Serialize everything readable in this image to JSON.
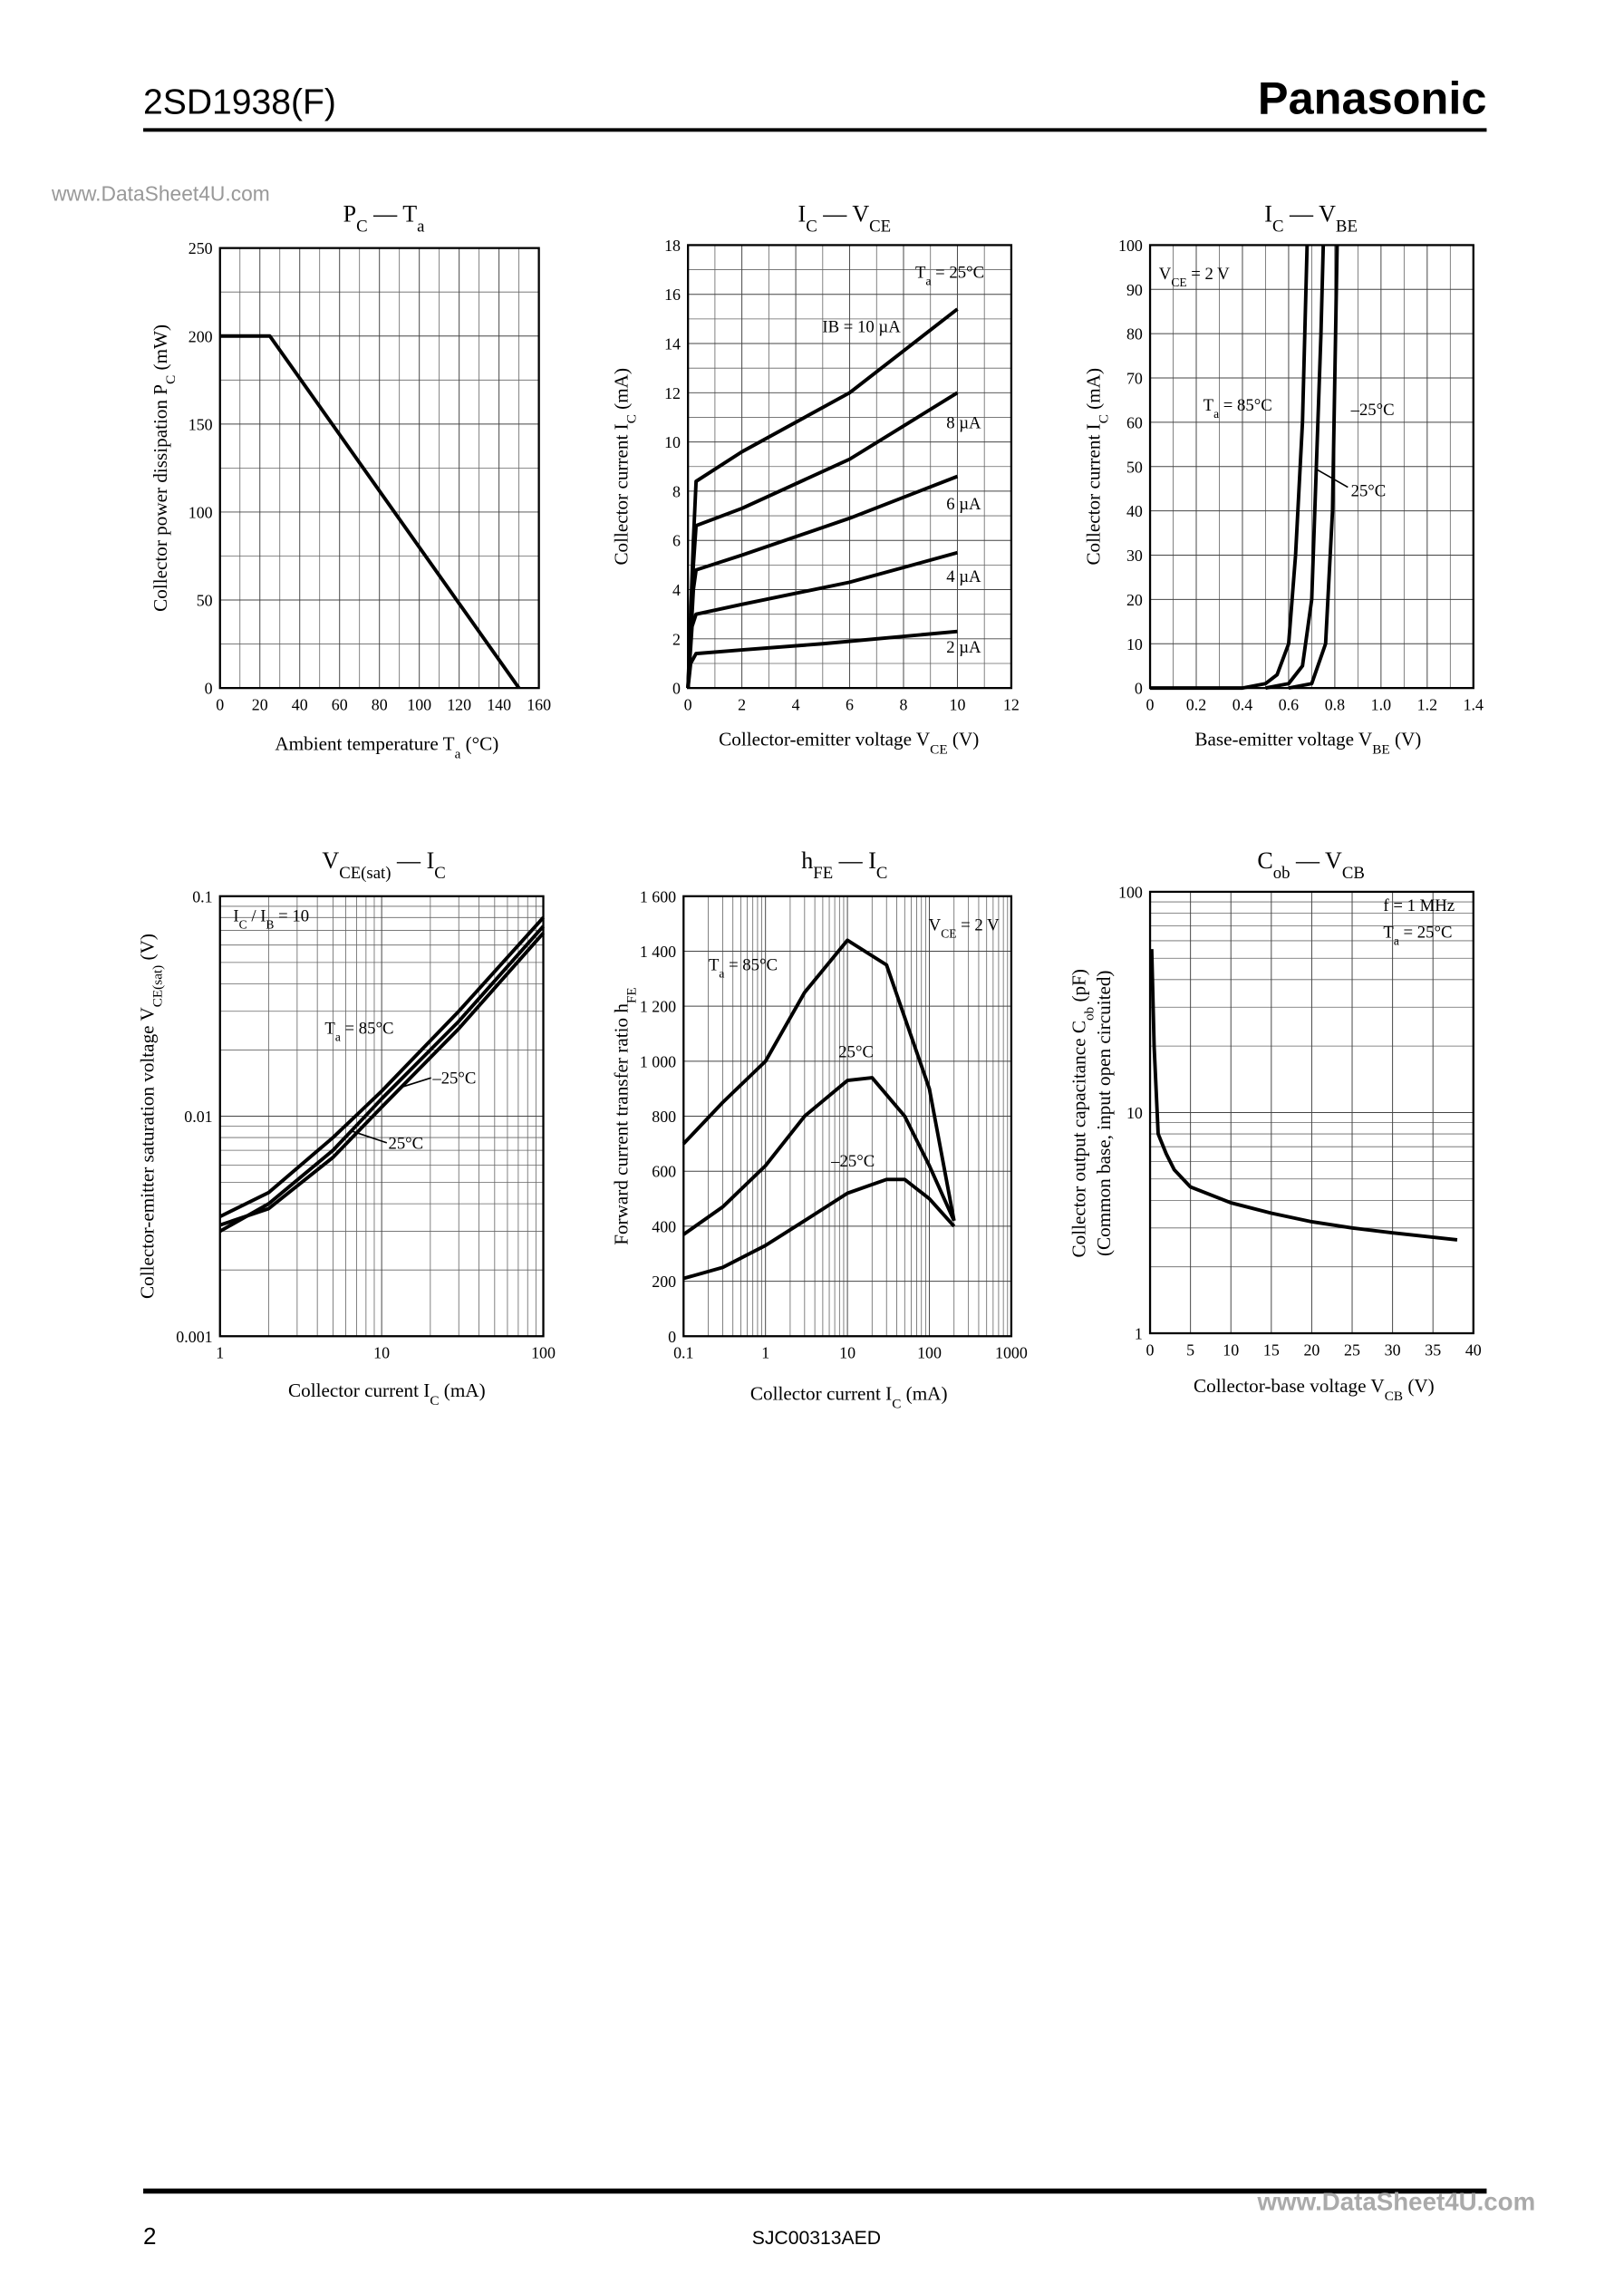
{
  "header": {
    "part": "2SD1938(F)",
    "brand": "Panasonic",
    "watermark": "www.DataSheet4U.com"
  },
  "footer": {
    "page": "2",
    "code": "SJC00313AED",
    "watermark": "www.DataSheet4U.com"
  },
  "chart_data": [
    {
      "type": "line",
      "title": [
        "P",
        "C",
        " — T",
        "a"
      ],
      "xlabel": [
        "Ambient temperature  T",
        "a",
        "  (°C)"
      ],
      "ylabel": [
        "Collector power dissipation  P",
        "C",
        "  (mW)"
      ],
      "xlim": [
        0,
        160
      ],
      "ylim": [
        0,
        250
      ],
      "xticks": [
        0,
        20,
        40,
        60,
        80,
        100,
        120,
        140,
        160
      ],
      "yticks": [
        0,
        50,
        100,
        150,
        200,
        250
      ],
      "xminor": [
        10,
        30,
        50,
        70,
        90,
        110,
        130,
        150
      ],
      "yminor": [
        25,
        75,
        125,
        175,
        225
      ],
      "grid": true,
      "series": [
        {
          "color": "#000000",
          "x": [
            0,
            25,
            150
          ],
          "values": [
            200,
            200,
            0
          ]
        }
      ]
    },
    {
      "type": "line",
      "title": [
        "I",
        "C",
        " — V",
        "CE"
      ],
      "xlabel": [
        "Collector-emitter voltage  V",
        "CE",
        "  (V)"
      ],
      "ylabel": [
        "Collector current  I",
        "C",
        "  (mA)"
      ],
      "xlim": [
        0,
        12
      ],
      "ylim": [
        0,
        18
      ],
      "xticks": [
        0,
        2,
        4,
        6,
        8,
        10,
        12
      ],
      "yticks": [
        0,
        2,
        4,
        6,
        8,
        10,
        12,
        14,
        16,
        18
      ],
      "xminor": [
        1,
        3,
        5,
        7,
        9,
        11
      ],
      "yminor": [
        1,
        3,
        5,
        7,
        9,
        11,
        13,
        15,
        17
      ],
      "grid": true,
      "annotations": [
        [
          "T",
          "a",
          " = 25°C"
        ]
      ],
      "series": [
        {
          "name": [
            "IB = 10 µA"
          ],
          "color": "#000000",
          "x": [
            0,
            0.2,
            0.3,
            2,
            6,
            10
          ],
          "values": [
            0,
            6,
            8.4,
            9.6,
            12,
            15.4
          ]
        },
        {
          "name": [
            "8 µA"
          ],
          "color": "#000000",
          "x": [
            0,
            0.2,
            0.3,
            2,
            6,
            10
          ],
          "values": [
            0,
            5,
            6.6,
            7.3,
            9.3,
            12
          ]
        },
        {
          "name": [
            "6 µA"
          ],
          "color": "#000000",
          "x": [
            0,
            0.2,
            0.3,
            2,
            6,
            10
          ],
          "values": [
            0,
            4,
            4.8,
            5.4,
            6.9,
            8.6
          ]
        },
        {
          "name": [
            "4 µA"
          ],
          "color": "#000000",
          "x": [
            0,
            0.15,
            0.3,
            2,
            6,
            10
          ],
          "values": [
            0,
            2.5,
            3,
            3.4,
            4.3,
            5.5
          ]
        },
        {
          "name": [
            "2 µA"
          ],
          "color": "#000000",
          "x": [
            0,
            0.1,
            0.3,
            2,
            5,
            10
          ],
          "values": [
            0,
            1,
            1.4,
            1.55,
            1.8,
            2.3
          ]
        }
      ]
    },
    {
      "type": "line",
      "title": [
        "I",
        "C",
        " — V",
        "BE"
      ],
      "xlabel": [
        "Base-emitter voltage  V",
        "BE",
        "  (V)"
      ],
      "ylabel": [
        "Collector current  I",
        "C",
        "  (mA)"
      ],
      "xlim": [
        0,
        1.4
      ],
      "ylim": [
        0,
        100
      ],
      "xticks": [
        0,
        0.2,
        0.4,
        0.6,
        0.8,
        {
          "value": 1,
          "label": "1.0"
        },
        1.2,
        1.4
      ],
      "yticks": [
        0,
        10,
        20,
        30,
        40,
        50,
        60,
        70,
        80,
        90,
        100
      ],
      "xminor": [
        0.1,
        0.3,
        0.5,
        0.7,
        0.9,
        1.1,
        1.3
      ],
      "grid": true,
      "annotations": [
        [
          "V",
          "CE",
          " = 2 V"
        ]
      ],
      "series": [
        {
          "name": [
            "T",
            "a",
            " = 85°C"
          ],
          "color": "#000000",
          "x": [
            0,
            0.4,
            0.5,
            0.55,
            0.6,
            0.63,
            0.66,
            0.68
          ],
          "values": [
            0,
            0,
            1,
            3,
            10,
            30,
            60,
            100
          ]
        },
        {
          "name": [
            "25°C"
          ],
          "color": "#000000",
          "x": [
            0.5,
            0.6,
            0.66,
            0.7,
            0.72,
            0.74,
            0.75
          ],
          "values": [
            0,
            1,
            5,
            20,
            50,
            80,
            100
          ]
        },
        {
          "name": [
            "–25°C"
          ],
          "color": "#000000",
          "x": [
            0.6,
            0.7,
            0.76,
            0.79,
            0.8,
            0.81
          ],
          "values": [
            0,
            1,
            10,
            40,
            70,
            100
          ]
        }
      ]
    },
    {
      "type": "line",
      "title": [
        "V",
        "CE(sat)",
        " — I",
        "C"
      ],
      "xlabel": [
        "Collector current  I",
        "C",
        "  (mA)"
      ],
      "ylabel": [
        "Collector-emitter saturation voltage  V",
        "CE(sat)",
        "  (V)"
      ],
      "xscale": "log",
      "yscale": "log",
      "xlim": [
        1,
        100
      ],
      "ylim": [
        0.001,
        0.1
      ],
      "xticks": [
        1,
        10,
        100
      ],
      "yticks": [
        0.001,
        0.01,
        0.1
      ],
      "xminor": [
        2,
        3,
        4,
        5,
        6,
        7,
        8,
        9,
        20,
        30,
        40,
        50,
        60,
        70,
        80,
        90
      ],
      "yminor": [
        0.002,
        0.003,
        0.004,
        0.005,
        0.006,
        0.007,
        0.008,
        0.009,
        0.02,
        0.03,
        0.04,
        0.05,
        0.06,
        0.07,
        0.08,
        0.09
      ],
      "grid": true,
      "annotations": [
        [
          "I",
          "C",
          " / I",
          "B",
          " = 10"
        ]
      ],
      "series": [
        {
          "name": [
            "T",
            "a",
            " = 85°C"
          ],
          "color": "#000000",
          "x": [
            1,
            2,
            5,
            10,
            30,
            100
          ],
          "values": [
            0.0035,
            0.0045,
            0.008,
            0.013,
            0.03,
            0.08
          ]
        },
        {
          "name": [
            "–25°C"
          ],
          "color": "#000000",
          "x": [
            1,
            2,
            5,
            10,
            30,
            100
          ],
          "values": [
            0.0032,
            0.0038,
            0.0065,
            0.011,
            0.025,
            0.068
          ]
        },
        {
          "name": [
            "25°C"
          ],
          "color": "#000000",
          "x": [
            1,
            2,
            5,
            10,
            30,
            100
          ],
          "values": [
            0.003,
            0.004,
            0.007,
            0.012,
            0.027,
            0.073
          ]
        }
      ]
    },
    {
      "type": "line",
      "title": [
        "h",
        "FE",
        " — I",
        "C"
      ],
      "xlabel": [
        "Collector current  I",
        "C",
        "  (mA)"
      ],
      "ylabel": [
        "Forward current transfer ratio  h",
        "FE"
      ],
      "xscale": "log",
      "xlim": [
        0.1,
        1000
      ],
      "ylim": [
        0,
        1600
      ],
      "xticks": [
        0.1,
        1,
        10,
        100,
        1000
      ],
      "yticks": [
        0,
        200,
        400,
        600,
        800,
        {
          "value": 1000,
          "label": "1 000"
        },
        {
          "value": 1200,
          "label": "1 200"
        },
        {
          "value": 1400,
          "label": "1 400"
        },
        {
          "value": 1600,
          "label": "1 600"
        }
      ],
      "xminor": [
        0.2,
        0.3,
        0.4,
        0.5,
        0.6,
        0.7,
        0.8,
        0.9,
        2,
        3,
        4,
        5,
        6,
        7,
        8,
        9,
        20,
        30,
        40,
        50,
        60,
        70,
        80,
        90,
        200,
        300,
        400,
        500,
        600,
        700,
        800,
        900
      ],
      "grid": true,
      "annotations": [
        [
          "V",
          "CE",
          " = 2 V"
        ]
      ],
      "series": [
        {
          "name": [
            "T",
            "a",
            " = 85°C"
          ],
          "color": "#000000",
          "x": [
            0.1,
            0.3,
            1,
            3,
            10,
            30,
            100,
            200
          ],
          "values": [
            700,
            850,
            1000,
            1250,
            1440,
            1350,
            900,
            420
          ]
        },
        {
          "name": [
            "25°C"
          ],
          "color": "#000000",
          "x": [
            0.1,
            0.3,
            1,
            3,
            10,
            20,
            50,
            100,
            200
          ],
          "values": [
            370,
            470,
            620,
            800,
            930,
            940,
            800,
            620,
            420
          ]
        },
        {
          "name": [
            "–25°C"
          ],
          "color": "#000000",
          "x": [
            0.1,
            0.3,
            1,
            3,
            10,
            30,
            50,
            100,
            200
          ],
          "values": [
            210,
            250,
            330,
            420,
            520,
            570,
            570,
            500,
            400
          ]
        }
      ]
    },
    {
      "type": "line",
      "title": [
        "C",
        "ob",
        " — V",
        "CB"
      ],
      "xlabel": [
        "Collector-base voltage  V",
        "CB",
        "  (V)"
      ],
      "ylabel": [
        "Collector output capacitance  C",
        "ob",
        "  (pF)"
      ],
      "ylabel2": "(Common base, input open circuited)",
      "yscale": "log",
      "xlim": [
        0,
        40
      ],
      "ylim": [
        1,
        100
      ],
      "xticks": [
        0,
        5,
        10,
        15,
        20,
        25,
        30,
        35,
        40
      ],
      "yticks": [
        1,
        10,
        100
      ],
      "yminor": [
        2,
        3,
        4,
        5,
        6,
        7,
        8,
        9,
        20,
        30,
        40,
        50,
        60,
        70,
        80,
        90
      ],
      "grid": true,
      "annotations": [
        "f = 1 MHz",
        [
          "T",
          "a",
          " = 25°C"
        ]
      ],
      "series": [
        {
          "color": "#000000",
          "x": [
            0.2,
            0.5,
            1,
            2,
            3,
            5,
            10,
            15,
            20,
            25,
            30,
            38
          ],
          "values": [
            55,
            20,
            8,
            6.5,
            5.5,
            4.6,
            3.9,
            3.5,
            3.2,
            3,
            2.85,
            2.65
          ]
        }
      ]
    }
  ]
}
